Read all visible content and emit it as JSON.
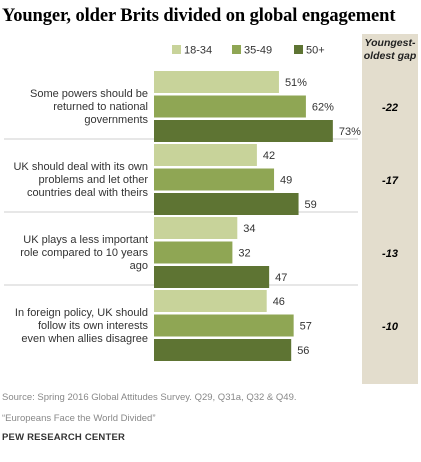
{
  "title": "Younger, older Brits divided on global engagement",
  "chart_data": {
    "type": "bar",
    "orientation": "horizontal",
    "title": "Younger, older Brits divided on global engagement",
    "categories": [
      "Some powers should be returned to national governments",
      "UK should deal with its own problems and let other countries deal with theirs",
      "UK plays a less important role compared to 10 years ago",
      "In foreign policy, UK should follow its own interests even when allies disagree"
    ],
    "category_lines": [
      [
        "Some powers should be",
        "returned to national",
        "governments"
      ],
      [
        "UK should deal with its own",
        "problems and let other",
        "countries deal with theirs"
      ],
      [
        "UK plays a less important",
        "role compared to 10 years",
        "ago"
      ],
      [
        "In foreign policy, UK should",
        "follow its own interests",
        "even when allies disagree"
      ]
    ],
    "series": [
      {
        "name": "18-34",
        "color": "#c8d39a",
        "values": [
          51,
          42,
          34,
          46
        ],
        "labels": [
          "51%",
          "42",
          "34",
          "46"
        ]
      },
      {
        "name": "35-49",
        "color": "#8fa654",
        "values": [
          62,
          49,
          32,
          57
        ],
        "labels": [
          "62%",
          "49",
          "32",
          "57"
        ]
      },
      {
        "name": "50+",
        "color": "#5e7433",
        "values": [
          73,
          59,
          47,
          56
        ],
        "labels": [
          "73%",
          "59",
          "47",
          "56"
        ]
      }
    ],
    "gap_header": [
      "Youngest-",
      "oldest gap"
    ],
    "gaps": [
      "-22",
      "-17",
      "-13",
      "-10"
    ],
    "xlim": [
      0,
      100
    ],
    "legend_position": "top"
  },
  "source": "Source: Spring 2016 Global Attitudes Survey. Q29, Q31a, Q32 & Q49.",
  "note": "“Europeans Face the World Divided”",
  "credit": "PEW RESEARCH CENTER",
  "colors": {
    "gap_column_bg": "#e3ddcd",
    "divider": "#cfcfcf"
  }
}
